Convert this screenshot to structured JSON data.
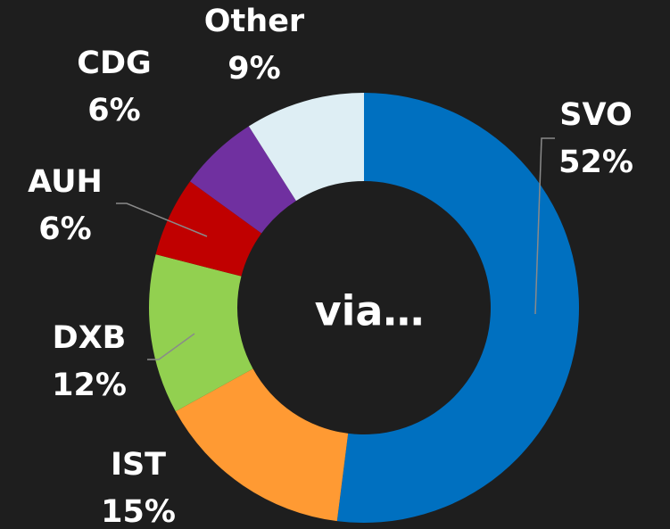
{
  "chart_data": {
    "type": "pie",
    "center_text": "via…",
    "categories": [
      "SVO",
      "IST",
      "DXB",
      "AUH",
      "CDG",
      "Other"
    ],
    "values": [
      52,
      15,
      12,
      6,
      6,
      9
    ],
    "value_labels": [
      "52%",
      "15%",
      "12%",
      "6%",
      "6%",
      "9%"
    ],
    "colors": [
      "#0070c0",
      "#ff9a33",
      "#92d050",
      "#c00000",
      "#7030a0",
      "#deeef4"
    ]
  }
}
